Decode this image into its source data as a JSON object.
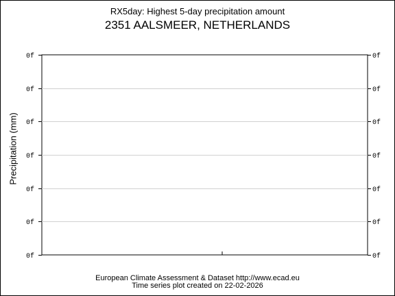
{
  "chart_data": {
    "type": "line",
    "title": "RX5day: Highest 5-day precipitation amount",
    "subtitle": "2351 AALSMEER, NETHERLANDS",
    "ylabel": "Precipitation (mm)",
    "xlabel": "",
    "y_tick_labels": [
      "0f",
      "0f",
      "0f",
      "0f",
      "0f",
      "0f",
      "0f"
    ],
    "grid": true,
    "series": []
  },
  "footer": {
    "line1": "European Climate Assessment & Dataset  http://www.ecad.eu",
    "line2": "Time series plot created on 22-02-2026"
  }
}
